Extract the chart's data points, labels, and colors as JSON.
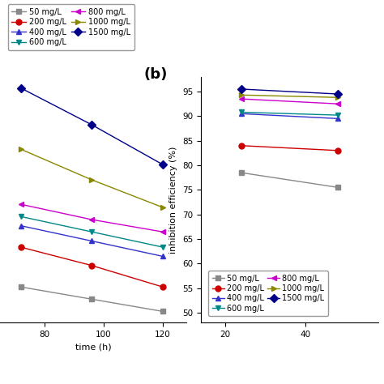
{
  "left_plot": {
    "xlabel": "time (h)",
    "x_values": [
      72,
      96,
      120
    ],
    "xticks": [
      80,
      100,
      120
    ],
    "series": [
      {
        "label": "50 mg/L",
        "color": "#888888",
        "marker": "s",
        "linestyle": "-",
        "values": [
          50,
          46,
          42
        ]
      },
      {
        "label": "200 mg/L",
        "color": "#cc0000",
        "marker": "o",
        "linestyle": "-",
        "values": [
          63,
          57,
          50
        ]
      },
      {
        "label": "400 mg/L",
        "color": "#3333cc",
        "marker": "^",
        "linestyle": "-",
        "values": [
          70,
          65,
          60
        ]
      },
      {
        "label": "600 mg/L",
        "color": "#008888",
        "marker": "v",
        "linestyle": "-",
        "values": [
          73,
          68,
          63
        ]
      },
      {
        "label": "800 mg/L",
        "color": "#cc00cc",
        "marker": "<",
        "linestyle": "-",
        "values": [
          77,
          72,
          68
        ]
      },
      {
        "label": "1000 mg/L",
        "color": "#888800",
        "marker": ">",
        "linestyle": "-",
        "values": [
          95,
          85,
          76
        ]
      },
      {
        "label": "1500 mg/L",
        "color": "#000088",
        "marker": "D",
        "linestyle": "-",
        "values": [
          115,
          103,
          90
        ]
      }
    ],
    "ylim_auto": true,
    "xlim": [
      65,
      128
    ]
  },
  "right_plot": {
    "ylabel": "inhibition efficiency (%)",
    "x_values": [
      24,
      48
    ],
    "xticks": [
      20,
      40
    ],
    "yticks": [
      50,
      55,
      60,
      65,
      70,
      75,
      80,
      85,
      90,
      95
    ],
    "series": [
      {
        "label": "50 mg/L",
        "color": "#888888",
        "marker": "s",
        "linestyle": "-",
        "values": [
          78.5,
          75.5
        ]
      },
      {
        "label": "200 mg/L",
        "color": "#cc0000",
        "marker": "o",
        "linestyle": "-",
        "values": [
          84.0,
          83.0
        ]
      },
      {
        "label": "400 mg/L",
        "color": "#3333cc",
        "marker": "^",
        "linestyle": "-",
        "values": [
          90.5,
          89.5
        ]
      },
      {
        "label": "600 mg/L",
        "color": "#008888",
        "marker": "v",
        "linestyle": "-",
        "values": [
          90.8,
          90.2
        ]
      },
      {
        "label": "800 mg/L",
        "color": "#cc00cc",
        "marker": "<",
        "linestyle": "-",
        "values": [
          93.5,
          92.5
        ]
      },
      {
        "label": "1000 mg/L",
        "color": "#888800",
        "marker": ">",
        "linestyle": "-",
        "values": [
          94.3,
          93.8
        ]
      },
      {
        "label": "1500 mg/L",
        "color": "#000088",
        "marker": "D",
        "linestyle": "-",
        "values": [
          95.5,
          94.5
        ]
      }
    ],
    "ylim": [
      48,
      98
    ],
    "xlim": [
      14,
      58
    ]
  },
  "background_color": "#ffffff",
  "label_b": "(b)",
  "label_b_fontsize": 13,
  "legend_fontsize": 7.0,
  "tick_fontsize": 7.5,
  "axis_label_fontsize": 8
}
